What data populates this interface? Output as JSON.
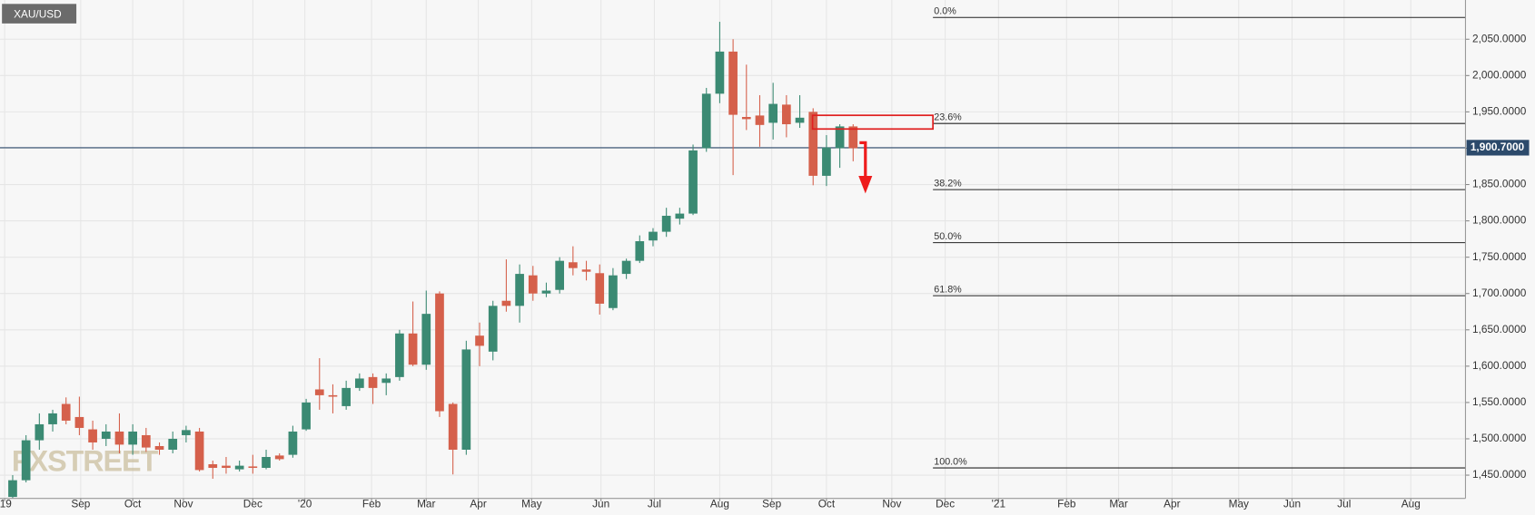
{
  "chart_data": {
    "type": "candlestick",
    "symbol": "XAU/USD",
    "watermark": "FXSTREET",
    "up_color": "#3b8a73",
    "down_color": "#d5604b",
    "grid": true,
    "x": [
      0,
      1,
      2,
      3,
      4,
      5,
      6,
      7,
      8,
      9,
      10,
      11,
      12,
      13,
      14,
      15,
      16,
      17,
      18,
      19,
      20,
      21,
      22,
      23,
      24,
      25,
      26,
      27,
      28,
      29,
      30,
      31,
      32,
      33,
      34,
      35,
      36,
      37,
      38,
      39,
      40,
      41,
      42,
      43,
      44,
      45,
      46,
      47,
      48,
      49,
      50,
      51,
      52,
      53,
      54,
      55,
      56,
      57,
      58,
      59,
      60,
      61,
      62,
      63
    ],
    "open": [
      1420,
      1443,
      1498,
      1520,
      1548,
      1530,
      1513,
      1500,
      1510,
      1492,
      1505,
      1490,
      1485,
      1505,
      1510,
      1465,
      1463,
      1458,
      1462,
      1460,
      1477,
      1478,
      1513,
      1568,
      1560,
      1545,
      1570,
      1585,
      1577,
      1585,
      1645,
      1602,
      1700,
      1548,
      1485,
      1642,
      1620,
      1690,
      1683,
      1725,
      1700,
      1705,
      1743,
      1733,
      1728,
      1680,
      1727,
      1745,
      1773,
      1785,
      1803,
      1810,
      1900,
      1975,
      2033,
      1943,
      1945,
      1935,
      1960,
      1935,
      1950,
      1862,
      1900,
      1930
    ],
    "high": [
      1450,
      1505,
      1535,
      1540,
      1557,
      1558,
      1525,
      1520,
      1535,
      1520,
      1515,
      1495,
      1510,
      1518,
      1515,
      1470,
      1475,
      1470,
      1478,
      1485,
      1480,
      1518,
      1555,
      1611,
      1575,
      1580,
      1590,
      1590,
      1590,
      1650,
      1689,
      1704,
      1703,
      1550,
      1635,
      1660,
      1690,
      1747,
      1740,
      1738,
      1715,
      1750,
      1765,
      1745,
      1740,
      1735,
      1748,
      1780,
      1790,
      1818,
      1818,
      1905,
      1983,
      2074,
      2050,
      2015,
      1973,
      1990,
      1973,
      1973,
      1955,
      1918,
      1933,
      1933
    ],
    "low": [
      1418,
      1440,
      1485,
      1510,
      1520,
      1505,
      1485,
      1490,
      1480,
      1478,
      1482,
      1478,
      1480,
      1495,
      1455,
      1445,
      1452,
      1455,
      1452,
      1458,
      1470,
      1474,
      1511,
      1540,
      1535,
      1540,
      1566,
      1548,
      1560,
      1580,
      1600,
      1595,
      1530,
      1451,
      1478,
      1600,
      1608,
      1675,
      1660,
      1690,
      1695,
      1700,
      1725,
      1718,
      1671,
      1677,
      1720,
      1742,
      1765,
      1778,
      1795,
      1808,
      1895,
      1962,
      1863,
      1925,
      1902,
      1912,
      1915,
      1928,
      1849,
      1848,
      1873,
      1882
    ],
    "close": [
      1443,
      1498,
      1520,
      1535,
      1525,
      1515,
      1495,
      1510,
      1492,
      1510,
      1488,
      1485,
      1500,
      1512,
      1457,
      1460,
      1460,
      1463,
      1460,
      1475,
      1472,
      1510,
      1550,
      1560,
      1558,
      1570,
      1583,
      1570,
      1583,
      1645,
      1602,
      1672,
      1538,
      1485,
      1623,
      1628,
      1683,
      1683,
      1727,
      1700,
      1704,
      1745,
      1735,
      1730,
      1686,
      1725,
      1745,
      1772,
      1785,
      1807,
      1810,
      1897,
      1975,
      2033,
      1946,
      1940,
      1932,
      1961,
      1933,
      1942,
      1862,
      1901,
      1930,
      1900
    ],
    "xlim": [
      -0.95,
      108.9
    ],
    "xticks": [
      {
        "value": -0.6,
        "label": "'19"
      },
      {
        "value": 5.1,
        "label": "Sep"
      },
      {
        "value": 9.0,
        "label": "Oct"
      },
      {
        "value": 12.8,
        "label": "Nov"
      },
      {
        "value": 18.0,
        "label": "Dec"
      },
      {
        "value": 21.9,
        "label": "'20"
      },
      {
        "value": 26.9,
        "label": "Feb"
      },
      {
        "value": 31.0,
        "label": "Mar"
      },
      {
        "value": 34.9,
        "label": "Apr"
      },
      {
        "value": 38.9,
        "label": "May"
      },
      {
        "value": 44.1,
        "label": "Jun"
      },
      {
        "value": 48.1,
        "label": "Jul"
      },
      {
        "value": 53.0,
        "label": "Aug"
      },
      {
        "value": 56.9,
        "label": "Sep"
      },
      {
        "value": 61.0,
        "label": "Oct"
      },
      {
        "value": 65.9,
        "label": "Nov"
      },
      {
        "value": 69.9,
        "label": "Dec"
      },
      {
        "value": 73.9,
        "label": "'21"
      },
      {
        "value": 79.0,
        "label": "Feb"
      },
      {
        "value": 82.9,
        "label": "Mar"
      },
      {
        "value": 86.9,
        "label": "Apr"
      },
      {
        "value": 91.9,
        "label": "May"
      },
      {
        "value": 95.9,
        "label": "Jun"
      },
      {
        "value": 99.8,
        "label": "Jul"
      },
      {
        "value": 104.8,
        "label": "Aug"
      }
    ],
    "ylim": [
      1418,
      2104
    ],
    "yticks": [
      {
        "value": 1450,
        "label": "1,450.0000"
      },
      {
        "value": 1500,
        "label": "1,500.0000"
      },
      {
        "value": 1550,
        "label": "1,550.0000"
      },
      {
        "value": 1600,
        "label": "1,600.0000"
      },
      {
        "value": 1650,
        "label": "1,650.0000"
      },
      {
        "value": 1700,
        "label": "1,700.0000"
      },
      {
        "value": 1750,
        "label": "1,750.0000"
      },
      {
        "value": 1800,
        "label": "1,800.0000"
      },
      {
        "value": 1850,
        "label": "1,850.0000"
      },
      {
        "value": 1900,
        "label": "1,900.0000"
      },
      {
        "value": 1950,
        "label": "1,950.0000"
      },
      {
        "value": 2000,
        "label": "2,000.0000"
      },
      {
        "value": 2050,
        "label": "2,050.0000"
      }
    ],
    "current_price": {
      "value": 1900.7,
      "label": "1,900.7000",
      "color": "#2c4a6b"
    },
    "fib_levels": [
      {
        "label": "0.0%",
        "price": 2080
      },
      {
        "label": "23.6%",
        "price": 1934
      },
      {
        "label": "38.2%",
        "price": 1843
      },
      {
        "label": "50.0%",
        "price": 1770
      },
      {
        "label": "61.8%",
        "price": 1697
      },
      {
        "label": "100.0%",
        "price": 1460
      }
    ]
  }
}
